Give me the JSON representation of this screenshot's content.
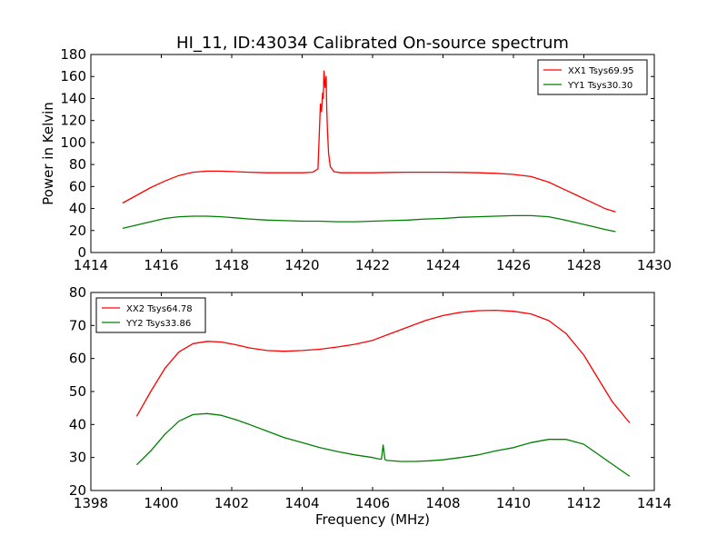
{
  "figure": {
    "title": "HI_11, ID:43034 Calibrated On-source spectrum"
  },
  "chart_data": [
    {
      "type": "line",
      "title": "HI_11, ID:43034 Calibrated On-source spectrum",
      "xlabel": "",
      "ylabel": "Power in Kelvin",
      "xlim": [
        1414,
        1430
      ],
      "ylim": [
        0,
        180
      ],
      "xticks": [
        1414,
        1416,
        1418,
        1420,
        1422,
        1424,
        1426,
        1428,
        1430
      ],
      "yticks": [
        0,
        20,
        40,
        60,
        80,
        100,
        120,
        140,
        160,
        180
      ],
      "grid": false,
      "legend_position": "top-right",
      "series": [
        {
          "name": "XX1 Tsys69.95",
          "color": "#ff0000",
          "x": [
            1414.9,
            1415.3,
            1415.7,
            1416.1,
            1416.5,
            1416.9,
            1417.3,
            1417.7,
            1418.1,
            1418.5,
            1419.0,
            1419.5,
            1420.0,
            1420.3,
            1420.45,
            1420.5,
            1420.52,
            1420.55,
            1420.58,
            1420.6,
            1420.62,
            1420.65,
            1420.68,
            1420.7,
            1420.72,
            1420.75,
            1420.8,
            1420.9,
            1421.1,
            1421.5,
            1422.0,
            1422.5,
            1423.0,
            1423.5,
            1424.0,
            1424.5,
            1425.0,
            1425.5,
            1426.0,
            1426.5,
            1427.0,
            1427.4,
            1427.8,
            1428.2,
            1428.6,
            1428.9
          ],
          "y": [
            45,
            52,
            59,
            65,
            70,
            73,
            74,
            74,
            73.5,
            73,
            72.5,
            72.5,
            72.5,
            73,
            76,
            120,
            135,
            128,
            145,
            140,
            165,
            150,
            160,
            130,
            110,
            90,
            78,
            73.5,
            72.5,
            72.5,
            72.5,
            72.8,
            73,
            73,
            73,
            72.8,
            72.5,
            72,
            71,
            69,
            64,
            58,
            52,
            46,
            40,
            37
          ]
        },
        {
          "name": "YY1 Tsys30.30",
          "color": "#008000",
          "x": [
            1414.9,
            1415.3,
            1415.7,
            1416.1,
            1416.5,
            1416.9,
            1417.3,
            1417.7,
            1418.1,
            1418.5,
            1419.0,
            1419.5,
            1420.0,
            1420.5,
            1421.0,
            1421.5,
            1422.0,
            1422.5,
            1423.0,
            1423.5,
            1424.0,
            1424.5,
            1425.0,
            1425.5,
            1426.0,
            1426.5,
            1427.0,
            1427.4,
            1427.8,
            1428.2,
            1428.6,
            1428.9
          ],
          "y": [
            22,
            25,
            28,
            31,
            32.5,
            33,
            33,
            32.5,
            31.5,
            30.5,
            29.5,
            29,
            28.5,
            28.5,
            28,
            28,
            28.5,
            29,
            29.5,
            30.5,
            31,
            32,
            32.5,
            33,
            33.5,
            33.5,
            32.5,
            30,
            27,
            24,
            21,
            19
          ]
        }
      ]
    },
    {
      "type": "line",
      "title": "",
      "xlabel": "Frequency (MHz)",
      "ylabel": "",
      "xlim": [
        1398,
        1414
      ],
      "ylim": [
        20,
        80
      ],
      "xticks": [
        1398,
        1400,
        1402,
        1404,
        1406,
        1408,
        1410,
        1412,
        1414
      ],
      "yticks": [
        20,
        30,
        40,
        50,
        60,
        70,
        80
      ],
      "grid": false,
      "legend_position": "top-left",
      "series": [
        {
          "name": "XX2 Tsys64.78",
          "color": "#ff0000",
          "x": [
            1399.3,
            1399.7,
            1400.1,
            1400.5,
            1400.9,
            1401.3,
            1401.7,
            1402.1,
            1402.5,
            1403.0,
            1403.5,
            1404.0,
            1404.5,
            1405.0,
            1405.5,
            1406.0,
            1406.5,
            1407.0,
            1407.5,
            1408.0,
            1408.5,
            1409.0,
            1409.5,
            1410.0,
            1410.5,
            1411.0,
            1411.5,
            1412.0,
            1412.4,
            1412.8,
            1413.3
          ],
          "y": [
            42.5,
            50,
            57,
            62,
            64.5,
            65.2,
            65,
            64.2,
            63.2,
            62.4,
            62.2,
            62.4,
            62.8,
            63.5,
            64.3,
            65.5,
            67.5,
            69.5,
            71.5,
            73,
            74,
            74.5,
            74.6,
            74.3,
            73.5,
            71.5,
            67.5,
            61,
            54,
            47,
            40.5
          ]
        },
        {
          "name": "YY2 Tsys33.86",
          "color": "#008000",
          "x": [
            1399.3,
            1399.7,
            1400.1,
            1400.5,
            1400.9,
            1401.3,
            1401.7,
            1402.1,
            1402.5,
            1403.0,
            1403.5,
            1404.0,
            1404.5,
            1405.0,
            1405.5,
            1406.0,
            1406.2,
            1406.25,
            1406.3,
            1406.35,
            1406.4,
            1406.8,
            1407.2,
            1407.6,
            1408.0,
            1408.5,
            1409.0,
            1409.5,
            1410.0,
            1410.5,
            1411.0,
            1411.5,
            1412.0,
            1412.4,
            1412.8,
            1413.3
          ],
          "y": [
            27.8,
            32,
            37,
            41,
            43,
            43.3,
            42.8,
            41.5,
            40,
            38,
            36,
            34.5,
            33,
            31.8,
            30.8,
            30,
            29.5,
            29.5,
            33.8,
            29.4,
            29.1,
            28.8,
            28.8,
            29,
            29.3,
            30,
            30.8,
            32,
            33,
            34.5,
            35.5,
            35.5,
            34,
            31,
            28,
            24.3
          ]
        }
      ]
    }
  ]
}
